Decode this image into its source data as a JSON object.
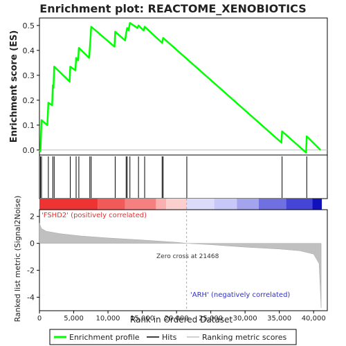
{
  "chart_data": {
    "type": "line",
    "title": "Enrichment plot: REACTOME_XENOBIOTICS",
    "xlabel": "Rank in Ordered Dataset",
    "top_panel": {
      "ylabel": "Enrichment score (ES)",
      "ylim": [
        -0.02,
        0.53
      ],
      "yticks": [
        0.0,
        0.1,
        0.2,
        0.3,
        0.4,
        0.5
      ],
      "series": [
        {
          "name": "Enrichment profile",
          "color": "#00ff00",
          "points": [
            [
              0,
              0.0
            ],
            [
              150,
              -0.005
            ],
            [
              300,
              0.12
            ],
            [
              1150,
              0.1
            ],
            [
              1300,
              0.19
            ],
            [
              1850,
              0.18
            ],
            [
              1950,
              0.26
            ],
            [
              2050,
              0.25
            ],
            [
              2150,
              0.335
            ],
            [
              4400,
              0.275
            ],
            [
              4500,
              0.335
            ],
            [
              5250,
              0.32
            ],
            [
              5350,
              0.37
            ],
            [
              5650,
              0.36
            ],
            [
              5750,
              0.41
            ],
            [
              7250,
              0.37
            ],
            [
              7350,
              0.41
            ],
            [
              7450,
              0.45
            ],
            [
              7550,
              0.495
            ],
            [
              10950,
              0.415
            ],
            [
              11050,
              0.475
            ],
            [
              12500,
              0.44
            ],
            [
              12650,
              0.47
            ],
            [
              12800,
              0.49
            ],
            [
              13000,
              0.48
            ],
            [
              13200,
              0.51
            ],
            [
              14300,
              0.49
            ],
            [
              14450,
              0.5
            ],
            [
              15200,
              0.48
            ],
            [
              15350,
              0.495
            ],
            [
              17900,
              0.43
            ],
            [
              18050,
              0.45
            ],
            [
              35300,
              0.03
            ],
            [
              35400,
              0.075
            ],
            [
              38900,
              -0.01
            ],
            [
              39000,
              0.055
            ],
            [
              41000,
              0.0
            ]
          ]
        }
      ]
    },
    "hits": [
      150,
      300,
      1300,
      1950,
      2150,
      4500,
      5350,
      5750,
      7350,
      7550,
      11050,
      12650,
      12800,
      13200,
      14450,
      15350,
      17900,
      18050,
      21500,
      35400,
      39000
    ],
    "bottom_panel": {
      "ylabel": "Ranked list metric (Signal2Noise)",
      "ylim": [
        -5,
        2.5
      ],
      "yticks": [
        -4,
        -2,
        0,
        2
      ],
      "xlim": [
        0,
        42000
      ],
      "xticks": [
        0,
        5000,
        10000,
        15000,
        20000,
        25000,
        30000,
        35000,
        40000
      ],
      "xtick_labels": [
        "0",
        "5,000",
        "10,000",
        "15,000",
        "20,000",
        "25,000",
        "30,000",
        "35,000",
        "40,000"
      ],
      "metric_curve": [
        [
          0,
          1.5
        ],
        [
          300,
          1.1
        ],
        [
          1000,
          0.9
        ],
        [
          3000,
          0.72
        ],
        [
          6000,
          0.55
        ],
        [
          10000,
          0.4
        ],
        [
          15000,
          0.25
        ],
        [
          20000,
          0.08
        ],
        [
          21468,
          0.0
        ],
        [
          25000,
          -0.1
        ],
        [
          30000,
          -0.28
        ],
        [
          35000,
          -0.42
        ],
        [
          38000,
          -0.55
        ],
        [
          40000,
          -0.8
        ],
        [
          40800,
          -1.5
        ],
        [
          41100,
          -4.8
        ]
      ],
      "positive_label": "'FSHD2' (positively correlated)",
      "negative_label": "'ARH' (negatively correlated)",
      "zero_cross_label": "Zero cross at 21468",
      "zero_cross": 21468
    },
    "heatmap_segments": [
      [
        0,
        8500,
        "#ee3333"
      ],
      [
        8500,
        12500,
        "#f25a5a"
      ],
      [
        12500,
        17000,
        "#f58080"
      ],
      [
        17000,
        18500,
        "#fbb0b0"
      ],
      [
        18500,
        21500,
        "#fccfcf"
      ],
      [
        21500,
        25500,
        "#dcdcfa"
      ],
      [
        25500,
        28800,
        "#c8c8f8"
      ],
      [
        28800,
        32000,
        "#a4a4ee"
      ],
      [
        32000,
        36000,
        "#7070e0"
      ],
      [
        36000,
        39800,
        "#4545d8"
      ],
      [
        39800,
        41200,
        "#1111bb"
      ]
    ],
    "legend": {
      "placement": "bottom",
      "items": [
        {
          "label": "Enrichment profile",
          "color": "#00ff00"
        },
        {
          "label": "Hits",
          "color": "#000000"
        },
        {
          "label": "Ranking metric scores",
          "color": "#c0c0c0"
        }
      ]
    }
  }
}
